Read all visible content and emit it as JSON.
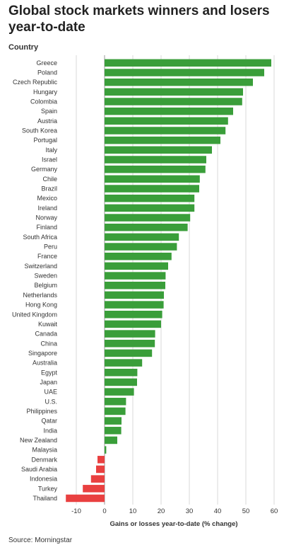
{
  "page": {
    "title": "Global stock markets winners and losers year-to-date",
    "source": "Source: Morningstar"
  },
  "chart_data": {
    "type": "bar",
    "orientation": "horizontal",
    "ylabel": "Country",
    "xlabel": "Gains or losses year-to-date (% change)",
    "xlim": [
      -14,
      60
    ],
    "xticks": [
      -10,
      0,
      10,
      20,
      30,
      40,
      50,
      60
    ],
    "grid": true,
    "colors": {
      "positive": "#3a9e3a",
      "negative": "#e94040",
      "grid": "#d9d9d9",
      "zero_line": "#999999"
    },
    "categories": [
      "Greece",
      "Poland",
      "Czech Republic",
      "Hungary",
      "Colombia",
      "Spain",
      "Austria",
      "South Korea",
      "Portugal",
      "Italy",
      "Israel",
      "Germany",
      "Chile",
      "Brazil",
      "Mexico",
      "Ireland",
      "Norway",
      "Finland",
      "South Africa",
      "Peru",
      "France",
      "Switzerland",
      "Sweden",
      "Belgium",
      "Netherlands",
      "Hong Kong",
      "United Kingdom",
      "Kuwait",
      "Canada",
      "China",
      "Singapore",
      "Australia",
      "Egypt",
      "Japan",
      "UAE",
      "U.S.",
      "Philippines",
      "Qatar",
      "India",
      "New Zealand",
      "Malaysia",
      "Denmark",
      "Saudi Arabia",
      "Indonesia",
      "Turkey",
      "Thailand"
    ],
    "values": [
      59,
      56.5,
      52.5,
      49,
      48.7,
      45.5,
      43.7,
      42.8,
      41,
      38,
      36,
      35.7,
      33.7,
      33.5,
      31.8,
      31.8,
      30.3,
      29.4,
      26.3,
      25.6,
      23.7,
      22.5,
      21.6,
      21.5,
      21,
      20.9,
      20.4,
      20,
      17.9,
      17.8,
      16.8,
      13.3,
      11.6,
      11.5,
      10.4,
      7.6,
      7.4,
      6,
      5.9,
      4.5,
      0.6,
      -2.5,
      -3,
      -4.8,
      -7.7,
      -13.7
    ]
  }
}
